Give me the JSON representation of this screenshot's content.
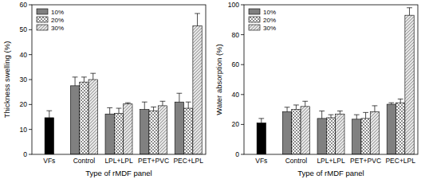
{
  "chart_data": [
    {
      "type": "bar",
      "y_label": "Thickness swelling (%)",
      "x_label": "Type of rMDF panel",
      "categories": [
        "VFs",
        "Control",
        "LPL+LPL",
        "PET+PVC",
        "PEC+LPL"
      ],
      "ylim": [
        0,
        60
      ],
      "yticks": [
        0,
        10,
        20,
        30,
        40,
        50,
        60
      ],
      "legend": "upper left",
      "series": [
        {
          "name": "10%",
          "color": "#808080",
          "colors": [
            "#000000",
            "#808080",
            "#808080",
            "#808080",
            "#808080"
          ],
          "values": [
            14.7,
            27.5,
            16.2,
            18.0,
            21.0
          ],
          "errors": [
            2.8,
            3.5,
            2.5,
            3.0,
            3.5
          ]
        },
        {
          "name": "20%",
          "color": "#808080",
          "values": [
            null,
            29.0,
            16.5,
            17.5,
            18.5
          ],
          "errors": [
            null,
            2.0,
            2.0,
            1.5,
            2.5
          ]
        },
        {
          "name": "30%",
          "color": "#808080",
          "values": [
            null,
            30.0,
            20.2,
            19.5,
            51.5
          ],
          "errors": [
            null,
            2.5,
            0.5,
            1.8,
            5.0
          ]
        }
      ]
    },
    {
      "type": "bar",
      "y_label": "Water absorption (%)",
      "x_label": "Type of rMDF panel",
      "categories": [
        "VFs",
        "Control",
        "LPL+LPL",
        "PET+PVC",
        "PEC+LPL"
      ],
      "ylim": [
        0,
        100
      ],
      "yticks": [
        0,
        20,
        40,
        60,
        80,
        100
      ],
      "legend": "upper left",
      "series": [
        {
          "name": "10%",
          "color": "#808080",
          "colors": [
            "#000000",
            "#808080",
            "#808080",
            "#808080",
            "#808080"
          ],
          "values": [
            21.0,
            28.5,
            24.0,
            23.5,
            33.5
          ],
          "errors": [
            3.0,
            3.0,
            5.0,
            3.0,
            1.0
          ]
        },
        {
          "name": "20%",
          "color": "#808080",
          "values": [
            null,
            30.0,
            24.5,
            24.0,
            34.5
          ],
          "errors": [
            null,
            3.0,
            2.0,
            4.0,
            2.5
          ]
        },
        {
          "name": "30%",
          "color": "#808080",
          "values": [
            null,
            32.0,
            27.0,
            28.5,
            93.0
          ],
          "errors": [
            null,
            3.5,
            2.0,
            4.0,
            5.0
          ]
        }
      ]
    }
  ]
}
